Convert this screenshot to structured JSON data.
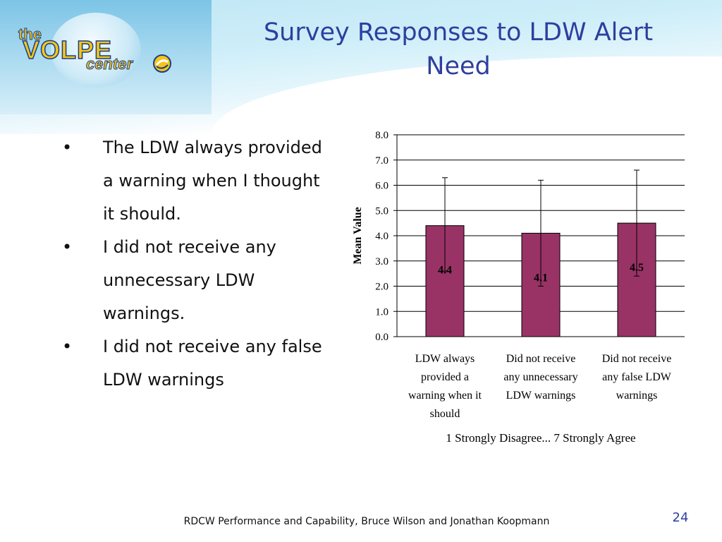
{
  "slide": {
    "title": "Survey Responses to LDW Alert\nNeed",
    "bullets": [
      "The LDW always provided a warning when I thought it should.",
      "I did not receive any unnecessary LDW warnings.",
      "I did not receive any false LDW warnings"
    ],
    "bullet_glyph": "•",
    "footer": "RDCW Performance and Capability, Bruce Wilson and Jonathan Koopmann",
    "page_number": "24"
  },
  "logo": {
    "the": "the",
    "volpe": "VOLPE",
    "center": "center"
  },
  "colors": {
    "title": "#2e3f9e",
    "bar": "#993366",
    "header": "#bfe6f4"
  },
  "chart_data": {
    "type": "bar",
    "categories": [
      "LDW always provided a warning when it should",
      "Did not receive any unnecessary LDW warnings",
      "Did not receive any false LDW warnings"
    ],
    "category_lines": [
      [
        "LDW always",
        "provided a",
        "warning when it",
        "should"
      ],
      [
        "Did not receive",
        "any unnecessary",
        "LDW warnings"
      ],
      [
        "Did not receive",
        "any false LDW",
        "warnings"
      ]
    ],
    "values": [
      4.4,
      4.1,
      4.5
    ],
    "data_labels": [
      "4.4",
      "4.1",
      "4.5"
    ],
    "error_bars": [
      {
        "upper": 6.3,
        "lower": 2.6
      },
      {
        "upper": 6.2,
        "lower": 2.0
      },
      {
        "upper": 6.6,
        "lower": 2.4
      }
    ],
    "ylabel": "Mean Value",
    "xlabel": "1 Strongly Disagree... 7 Strongly Agree",
    "ylim": [
      0,
      8
    ],
    "yticks": [
      "0.0",
      "1.0",
      "2.0",
      "3.0",
      "4.0",
      "5.0",
      "6.0",
      "7.0",
      "8.0"
    ],
    "grid": true,
    "legend": "none"
  }
}
